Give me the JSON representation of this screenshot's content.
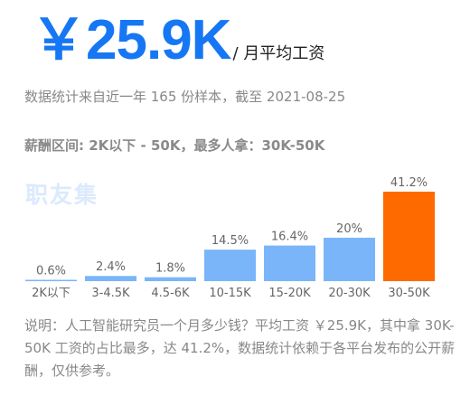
{
  "header": {
    "salary": "￥25.9K",
    "unit": "/ 月平均工资",
    "sample": "数据统计来自近一年 165 份样本，截至 2021-08-25",
    "range_summary": "薪酬区间: 2K以下 - 50K，最多人拿：30K-50K",
    "watermark": "职友集"
  },
  "note": "说明：人工智能研究员一个月多少钱？平均工资 ￥25.9K，其中拿 30K-50K 工资的占比最多，达 41.2%，数据统计依赖于各平台发布的公开薪酬，仅供参考。",
  "colors": {
    "accent": "#1677f4",
    "bar": "#7ab5fa",
    "highlight": "#ff6a00",
    "label": "#666666"
  },
  "chart_data": {
    "type": "bar",
    "categories": [
      "2K以下",
      "3-4.5K",
      "4.5-6K",
      "10-15K",
      "15-20K",
      "20-30K",
      "30-50K"
    ],
    "values": [
      0.6,
      2.4,
      1.8,
      14.5,
      16.4,
      20,
      41.2
    ],
    "value_labels": [
      "0.6%",
      "2.4%",
      "1.8%",
      "14.5%",
      "16.4%",
      "20%",
      "41.2%"
    ],
    "highlight_index": 6,
    "ylim": [
      0,
      41.2
    ],
    "grid": false,
    "legend": "none"
  }
}
